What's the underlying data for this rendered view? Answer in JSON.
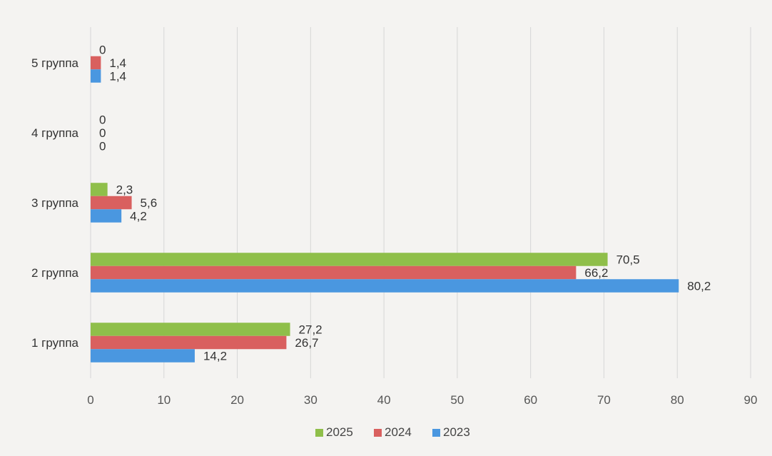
{
  "chart_data": {
    "type": "bar",
    "orientation": "horizontal",
    "categories": [
      "1 группа",
      "2 группа",
      "3 группа",
      "4 группа",
      "5 группа"
    ],
    "series": [
      {
        "name": "2025",
        "color": "#8fbf4a",
        "values": [
          27.2,
          70.5,
          2.3,
          0,
          0
        ]
      },
      {
        "name": "2024",
        "color": "#d9605f",
        "values": [
          26.7,
          66.2,
          5.6,
          0,
          1.4
        ]
      },
      {
        "name": "2023",
        "color": "#4a97e0",
        "values": [
          14.2,
          80.2,
          4.2,
          0,
          1.4
        ]
      }
    ],
    "value_labels": [
      [
        "27,2",
        "70,5",
        "2,3",
        "0",
        "0"
      ],
      [
        "26,7",
        "66,2",
        "5,6",
        "0",
        "1,4"
      ],
      [
        "14,2",
        "80,2",
        "4,2",
        "0",
        "1,4"
      ]
    ],
    "xlim": [
      0,
      90
    ],
    "xticks": [
      0,
      10,
      20,
      30,
      40,
      50,
      60,
      70,
      80,
      90
    ],
    "xtick_labels": [
      "0",
      "10",
      "20",
      "30",
      "40",
      "50",
      "60",
      "70",
      "80",
      "90"
    ],
    "grid": true,
    "legend": {
      "placement": "bottom-center",
      "order": [
        "2025",
        "2024",
        "2023"
      ]
    }
  }
}
